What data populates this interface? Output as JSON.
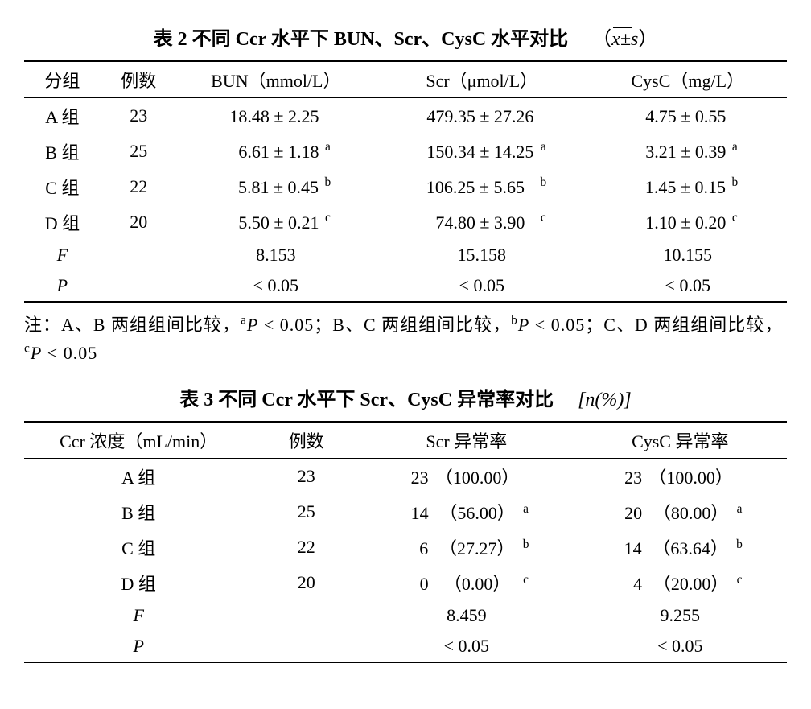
{
  "table2": {
    "title_main": "表 2  不同 Ccr 水平下 BUN、Scr、CysC 水平对比",
    "title_unit_prefix": "（",
    "title_unit_var": "x±s",
    "title_unit_suffix": "）",
    "columns": [
      "分组",
      "例数",
      "BUN（mmol/L）",
      "Scr（μmol/L）",
      "CysC（mg/L）"
    ],
    "col_widths": [
      "10%",
      "10%",
      "26%",
      "28%",
      "26%"
    ],
    "rows": [
      {
        "g": "A 组",
        "n": "23",
        "bun_m": "18.48",
        "bun_s": "2.25",
        "bun_sup": "",
        "scr_m": "479.35",
        "scr_s": "27.26",
        "scr_sup": "",
        "cys_m": "4.75",
        "cys_s": "0.55",
        "cys_sup": ""
      },
      {
        "g": "B 组",
        "n": "25",
        "bun_m": "6.61",
        "bun_s": "1.18",
        "bun_sup": "a",
        "scr_m": "150.34",
        "scr_s": "14.25",
        "scr_sup": "a",
        "cys_m": "3.21",
        "cys_s": "0.39",
        "cys_sup": "a"
      },
      {
        "g": "C 组",
        "n": "22",
        "bun_m": "5.81",
        "bun_s": "0.45",
        "bun_sup": "b",
        "scr_m": "106.25",
        "scr_s": "5.65",
        "scr_sup": "b",
        "cys_m": "1.45",
        "cys_s": "0.15",
        "cys_sup": "b"
      },
      {
        "g": "D 组",
        "n": "20",
        "bun_m": "5.50",
        "bun_s": "0.21",
        "bun_sup": "c",
        "scr_m": "74.80",
        "scr_s": "3.90",
        "scr_sup": "c",
        "cys_m": "1.10",
        "cys_s": "0.20",
        "cys_sup": "c"
      }
    ],
    "frow": {
      "label": "F",
      "bun": "8.153",
      "scr": "15.158",
      "cys": "10.155"
    },
    "prow": {
      "label": "P",
      "bun": "< 0.05",
      "scr": "< 0.05",
      "cys": "< 0.05"
    }
  },
  "note2": {
    "prefix": "注：A、B 两组组间比较，",
    "a_sup": "a",
    "a_p": "P",
    "a_rest": " < 0.05；B、C 两组组间比较，",
    "b_sup": "b",
    "b_p": "P",
    "b_rest": " < 0.05；C、D 两组组间比较，",
    "c_sup": "c",
    "c_p": "P",
    "c_rest": " < 0.05"
  },
  "table3": {
    "title_main": "表 3  不同 Ccr 水平下 Scr、CysC 异常率对比",
    "title_unit": "[n(%)]",
    "columns": [
      "Ccr 浓度（mL/min）",
      "例数",
      "Scr 异常率",
      "CysC 异常率"
    ],
    "col_widths": [
      "30%",
      "14%",
      "28%",
      "28%"
    ],
    "rows": [
      {
        "g": "A 组",
        "n": "23",
        "scr_n": "23",
        "scr_p": "（100.00）",
        "scr_sup": "",
        "cys_n": "23",
        "cys_p": "（100.00）",
        "cys_sup": ""
      },
      {
        "g": "B 组",
        "n": "25",
        "scr_n": "14",
        "scr_p": "（56.00）",
        "scr_sup": "a",
        "cys_n": "20",
        "cys_p": "（80.00）",
        "cys_sup": "a"
      },
      {
        "g": "C 组",
        "n": "22",
        "scr_n": "6",
        "scr_p": "（27.27）",
        "scr_sup": "b",
        "cys_n": "14",
        "cys_p": "（63.64）",
        "cys_sup": "b"
      },
      {
        "g": "D 组",
        "n": "20",
        "scr_n": "0",
        "scr_p": "（0.00）",
        "scr_sup": "c",
        "cys_n": "4",
        "cys_p": "（20.00）",
        "cys_sup": "c"
      }
    ],
    "frow": {
      "label": "F",
      "scr": "8.459",
      "cys": "9.255"
    },
    "prow": {
      "label": "P",
      "scr": "< 0.05",
      "cys": "< 0.05"
    }
  }
}
